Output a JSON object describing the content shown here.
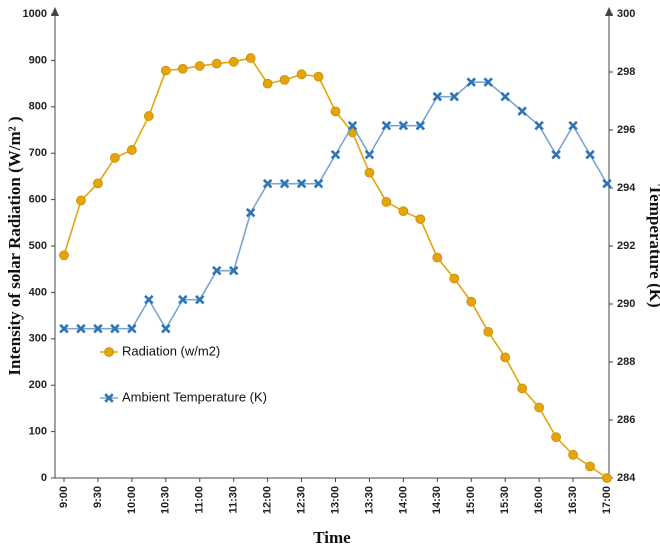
{
  "chart_data": {
    "type": "line",
    "x_label": "Time",
    "y_label": "Intensity of solar Radiation (W/m² )",
    "y2_label": "Temperature (K)",
    "categories": [
      "9:00",
      null,
      "9:30",
      null,
      "10:00",
      null,
      "10:30",
      null,
      "11:00",
      null,
      "11:30",
      null,
      "12:00",
      null,
      "12:30",
      null,
      "13:00",
      null,
      "13:30",
      null,
      "14:00",
      null,
      "14:30",
      null,
      "15:00",
      null,
      "15:30",
      null,
      "16:00",
      null,
      "16:30",
      null,
      "17:00"
    ],
    "series": [
      {
        "name": "Radiation (w/m2)",
        "color": "#e5a50a",
        "marker": "circle",
        "axis": "y",
        "values": [
          480,
          598,
          635,
          690,
          707,
          780,
          878,
          882,
          888,
          893,
          897,
          905,
          850,
          858,
          870,
          865,
          790,
          745,
          658,
          595,
          575,
          558,
          475,
          430,
          380,
          315,
          260,
          193,
          152,
          88,
          50,
          25,
          0
        ]
      },
      {
        "name": "Ambient Temperature (K)",
        "color": "#2e75b6",
        "marker": "x",
        "axis": "y2",
        "values": [
          289.15,
          289.15,
          289.15,
          289.15,
          289.15,
          290.15,
          289.15,
          290.15,
          290.15,
          291.15,
          291.15,
          293.15,
          294.15,
          294.15,
          294.15,
          294.15,
          295.15,
          296.15,
          295.15,
          296.15,
          296.15,
          296.15,
          297.15,
          297.15,
          297.65,
          297.65,
          297.15,
          296.65,
          296.15,
          295.15,
          296.15,
          295.15,
          294.15
        ]
      }
    ],
    "ylim": [
      0,
      1000
    ],
    "yticks": [
      0,
      100,
      200,
      300,
      400,
      500,
      600,
      700,
      800,
      900,
      1000
    ],
    "y2lim": [
      284,
      300
    ],
    "y2ticks": [
      284,
      286,
      288,
      290,
      292,
      294,
      296,
      298,
      300
    ],
    "grid": false,
    "legend_position": "center-left"
  }
}
